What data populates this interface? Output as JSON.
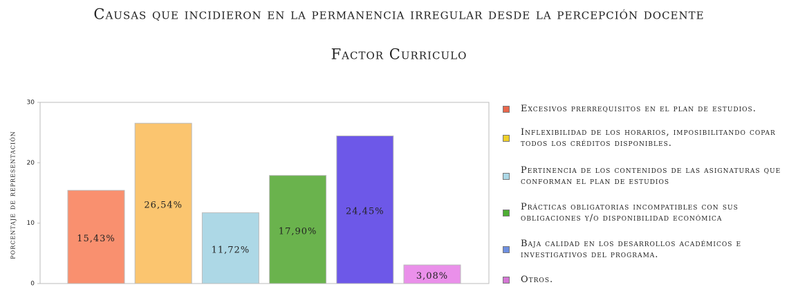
{
  "chart_data": {
    "type": "bar",
    "title": "Causas que incidieron en la permanencia irregular desde la percepción docente",
    "subtitle": "Factor Curriculo",
    "y_label": "porcentaje de representación",
    "categories": [
      "Excesivos prerrequisitos en el plan de estudios.",
      "Inflexibilidad de los horarios, imposibilitando copar todos los créditos disponibles.",
      "Pertinencia de los contenidos de las asignaturas que conforman el plan de estudios",
      "Prácticas obligatorias incompatibles con sus obligaciones y/o disponibilidad económica",
      "Baja calidad en los desarrollos académicos e investigativos del programa.",
      "Otros."
    ],
    "values": [
      15.43,
      26.54,
      11.72,
      17.9,
      24.45,
      3.08
    ],
    "value_labels": [
      "15,43%",
      "26,54%",
      "11,72%",
      "17,90%",
      "24,45%",
      "3,08%"
    ],
    "colors": [
      "#f9906f",
      "#fbc56f",
      "#add8e6",
      "#6ab34d",
      "#6d58e8",
      "#ea90ea"
    ],
    "legend_colors": [
      "#e8674c",
      "#efd02a",
      "#acd8e6",
      "#4dad33",
      "#6e8fe0",
      "#d476d4"
    ],
    "ylim": [
      0,
      30
    ],
    "yticks": [
      0,
      10,
      20,
      30
    ],
    "grid": false
  }
}
